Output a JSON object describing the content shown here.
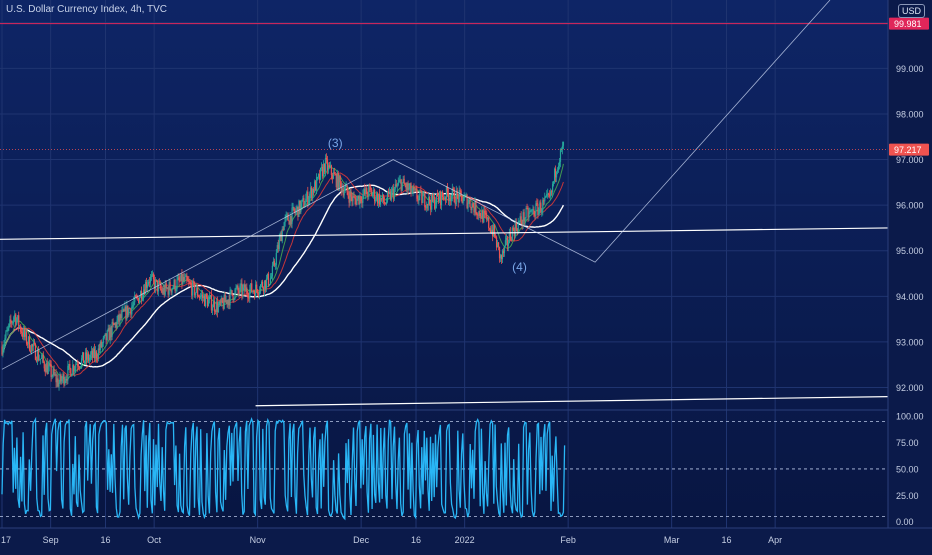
{
  "header": {
    "title": "U.S. Dollar Currency Index, 4h, TVC",
    "currency_badge": "USD"
  },
  "chart_data": {
    "type": "candlestick",
    "price_axis": {
      "ylim": [
        91.55,
        100.5
      ],
      "ticks": [
        "92.000",
        "93.000",
        "94.000",
        "95.000",
        "96.000",
        "97.000",
        "98.000",
        "99.000",
        "100.000"
      ],
      "tick_values": [
        92,
        93,
        94,
        95,
        96,
        97,
        98,
        99,
        100
      ]
    },
    "time_axis": {
      "labels": [
        "17",
        "Sep",
        "16",
        "Oct",
        "Nov",
        "Dec",
        "16",
        "2022",
        "Feb",
        "Mar",
        "16",
        "Apr"
      ],
      "label_months": [
        0,
        0.47,
        1.0,
        1.47,
        2.47,
        3.47,
        4.0,
        4.47,
        5.47,
        6.47,
        7.0,
        7.47
      ]
    },
    "markers": {
      "resistance_label": "99.981",
      "resistance_value": 99.981,
      "last_price_label": "97.217",
      "last_price_value": 97.217,
      "colors": {
        "resistance": "#e0265a",
        "last_price": "#ef5350"
      }
    },
    "wave_labels": [
      {
        "text": "(3)",
        "month": 3.22,
        "price": 97.28
      },
      {
        "text": "(4)",
        "month": 5.0,
        "price": 94.55
      }
    ],
    "price_path": [
      {
        "m": 0.0,
        "p": 92.9
      },
      {
        "m": 0.12,
        "p": 93.6
      },
      {
        "m": 0.22,
        "p": 93.1
      },
      {
        "m": 0.38,
        "p": 92.6
      },
      {
        "m": 0.55,
        "p": 92.1
      },
      {
        "m": 0.72,
        "p": 92.55
      },
      {
        "m": 0.9,
        "p": 92.7
      },
      {
        "m": 1.1,
        "p": 93.4
      },
      {
        "m": 1.3,
        "p": 93.9
      },
      {
        "m": 1.42,
        "p": 94.4
      },
      {
        "m": 1.55,
        "p": 94.1
      },
      {
        "m": 1.75,
        "p": 94.35
      },
      {
        "m": 1.95,
        "p": 93.95
      },
      {
        "m": 2.1,
        "p": 93.75
      },
      {
        "m": 2.25,
        "p": 94.1
      },
      {
        "m": 2.45,
        "p": 94.15
      },
      {
        "m": 2.6,
        "p": 94.4
      },
      {
        "m": 2.72,
        "p": 95.6
      },
      {
        "m": 2.9,
        "p": 96.0
      },
      {
        "m": 3.05,
        "p": 96.5
      },
      {
        "m": 3.12,
        "p": 96.9
      },
      {
        "m": 3.25,
        "p": 96.5
      },
      {
        "m": 3.4,
        "p": 96.1
      },
      {
        "m": 3.55,
        "p": 96.3
      },
      {
        "m": 3.7,
        "p": 96.05
      },
      {
        "m": 3.85,
        "p": 96.5
      },
      {
        "m": 4.0,
        "p": 96.2
      },
      {
        "m": 4.15,
        "p": 96.05
      },
      {
        "m": 4.3,
        "p": 96.25
      },
      {
        "m": 4.5,
        "p": 96.1
      },
      {
        "m": 4.65,
        "p": 95.75
      },
      {
        "m": 4.75,
        "p": 95.4
      },
      {
        "m": 4.82,
        "p": 94.8
      },
      {
        "m": 4.92,
        "p": 95.4
      },
      {
        "m": 5.05,
        "p": 95.75
      },
      {
        "m": 5.2,
        "p": 95.95
      },
      {
        "m": 5.3,
        "p": 96.15
      },
      {
        "m": 5.36,
        "p": 96.9
      },
      {
        "m": 5.43,
        "p": 97.3
      }
    ],
    "oscillator": {
      "type": "line",
      "ylim": [
        -6,
        104
      ],
      "ticks": [
        "100.00",
        "75.00",
        "50.00",
        "25.00",
        "0.00"
      ],
      "tick_values": [
        100,
        75,
        50,
        25,
        0
      ],
      "levels": [
        95,
        50,
        5
      ],
      "color": "#29b6f6"
    },
    "colors": {
      "background": "#0b1a4a",
      "up_candle": "#26a69a",
      "down_candle": "#ef5350",
      "ma_white": "#ffffff",
      "ma_green": "#4caf50",
      "ma_red": "#e53935",
      "trendline": "#c8d4f0"
    },
    "grid": true,
    "legend": "none"
  }
}
